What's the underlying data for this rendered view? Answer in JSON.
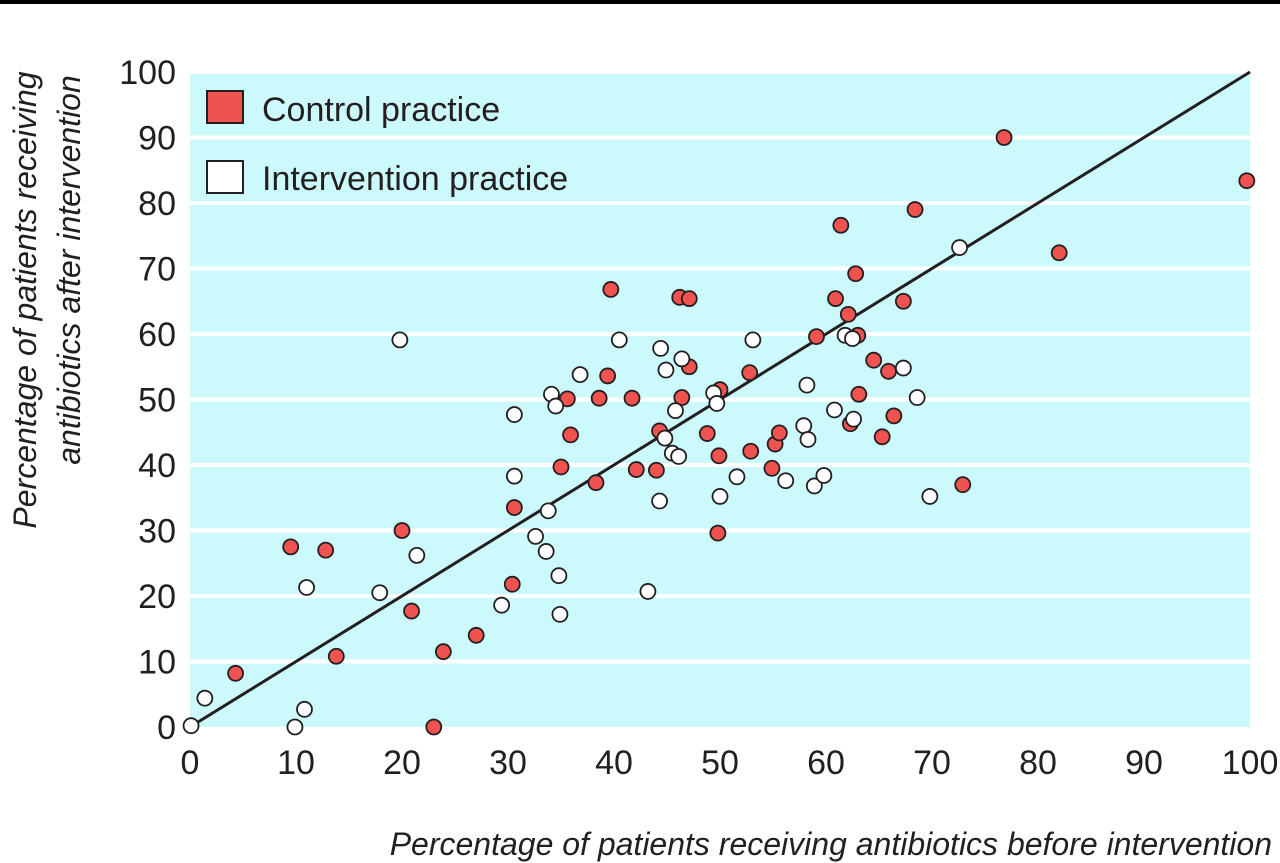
{
  "chart_data": {
    "type": "scatter",
    "xlabel": "Percentage of patients receiving antibiotics before intervention",
    "ylabel_lines": [
      "Percentage of patients receiving",
      "antibiotics after intervention"
    ],
    "xlim": [
      0,
      100
    ],
    "ylim": [
      0,
      100
    ],
    "x_ticks": [
      0,
      10,
      20,
      30,
      40,
      50,
      60,
      70,
      80,
      90,
      100
    ],
    "y_ticks": [
      0,
      10,
      20,
      30,
      40,
      50,
      60,
      70,
      80,
      90,
      100
    ],
    "grid": true,
    "legend_position": "top-left",
    "reference_line": {
      "from": [
        0,
        0
      ],
      "to": [
        100,
        100
      ]
    },
    "colors": {
      "plot_background": "#ccf9fb",
      "grid": "#ffffff",
      "control": "#ef5350",
      "intervention": "#ffffff",
      "marker_edge": "#231f20",
      "line": "#231f20"
    },
    "series": [
      {
        "name": "Control practice",
        "points": [
          [
            4.3,
            8.2
          ],
          [
            9.5,
            27.5
          ],
          [
            12.8,
            27.0
          ],
          [
            13.8,
            10.8
          ],
          [
            20.0,
            30.0
          ],
          [
            20.9,
            17.7
          ],
          [
            23.0,
            0.0
          ],
          [
            23.9,
            11.5
          ],
          [
            27.0,
            14.0
          ],
          [
            30.4,
            21.8
          ],
          [
            30.6,
            33.5
          ],
          [
            35.0,
            39.7
          ],
          [
            35.6,
            50.1
          ],
          [
            35.9,
            44.6
          ],
          [
            38.3,
            37.3
          ],
          [
            38.6,
            50.2
          ],
          [
            39.4,
            53.6
          ],
          [
            39.7,
            66.8
          ],
          [
            41.7,
            50.2
          ],
          [
            42.1,
            39.3
          ],
          [
            44.0,
            39.2
          ],
          [
            44.3,
            45.2
          ],
          [
            46.2,
            65.6
          ],
          [
            46.4,
            50.3
          ],
          [
            47.1,
            65.4
          ],
          [
            47.1,
            55.0
          ],
          [
            48.8,
            44.8
          ],
          [
            49.8,
            29.6
          ],
          [
            49.9,
            41.4
          ],
          [
            50.0,
            51.5
          ],
          [
            52.8,
            54.1
          ],
          [
            52.9,
            42.1
          ],
          [
            54.9,
            39.5
          ],
          [
            55.2,
            43.2
          ],
          [
            55.6,
            44.9
          ],
          [
            59.1,
            59.6
          ],
          [
            60.9,
            65.4
          ],
          [
            61.4,
            76.6
          ],
          [
            62.1,
            63.0
          ],
          [
            62.3,
            46.3
          ],
          [
            62.8,
            69.2
          ],
          [
            63.0,
            59.8
          ],
          [
            63.1,
            50.8
          ],
          [
            64.5,
            56.0
          ],
          [
            65.3,
            44.3
          ],
          [
            65.9,
            54.3
          ],
          [
            66.4,
            47.5
          ],
          [
            67.3,
            65.0
          ],
          [
            68.4,
            79.0
          ],
          [
            72.9,
            37.0
          ],
          [
            76.8,
            90.0
          ],
          [
            82.0,
            72.4
          ],
          [
            99.7,
            83.4
          ]
        ]
      },
      {
        "name": "Intervention practice",
        "points": [
          [
            0.1,
            0.2
          ],
          [
            1.4,
            4.4
          ],
          [
            9.9,
            0.0
          ],
          [
            10.8,
            2.7
          ],
          [
            11.0,
            21.3
          ],
          [
            17.9,
            20.5
          ],
          [
            19.8,
            59.1
          ],
          [
            21.4,
            26.2
          ],
          [
            29.4,
            18.6
          ],
          [
            30.6,
            38.3
          ],
          [
            30.6,
            47.7
          ],
          [
            32.6,
            29.1
          ],
          [
            33.6,
            26.8
          ],
          [
            33.8,
            33.0
          ],
          [
            34.1,
            50.8
          ],
          [
            34.5,
            49.0
          ],
          [
            34.8,
            23.1
          ],
          [
            34.9,
            17.2
          ],
          [
            36.8,
            53.8
          ],
          [
            40.5,
            59.1
          ],
          [
            43.2,
            20.7
          ],
          [
            44.3,
            34.5
          ],
          [
            44.4,
            57.8
          ],
          [
            44.8,
            44.1
          ],
          [
            44.9,
            54.5
          ],
          [
            45.5,
            41.8
          ],
          [
            45.8,
            48.3
          ],
          [
            46.1,
            41.3
          ],
          [
            46.4,
            56.2
          ],
          [
            49.4,
            51.0
          ],
          [
            49.7,
            49.4
          ],
          [
            50.0,
            35.2
          ],
          [
            51.6,
            38.2
          ],
          [
            53.1,
            59.1
          ],
          [
            56.2,
            37.6
          ],
          [
            57.9,
            46.0
          ],
          [
            58.2,
            52.2
          ],
          [
            58.3,
            43.9
          ],
          [
            58.9,
            36.8
          ],
          [
            59.8,
            38.4
          ],
          [
            60.8,
            48.4
          ],
          [
            61.8,
            59.8
          ],
          [
            62.5,
            59.3
          ],
          [
            62.6,
            47.0
          ],
          [
            67.3,
            54.8
          ],
          [
            68.6,
            50.3
          ],
          [
            69.8,
            35.2
          ],
          [
            72.6,
            73.2
          ]
        ]
      }
    ]
  }
}
